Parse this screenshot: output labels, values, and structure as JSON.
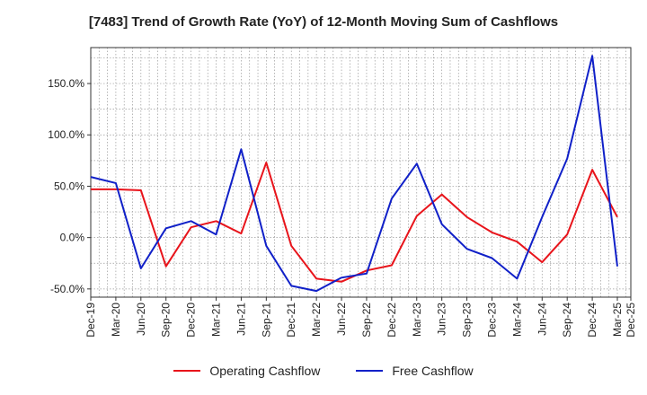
{
  "chart_data": {
    "type": "line",
    "title": "[7483]  Trend of Growth Rate (YoY) of 12-Month Moving Sum of Cashflows",
    "xlabel": "",
    "ylabel": "",
    "ylim": [
      -58,
      185
    ],
    "yticks": [
      -50,
      0,
      50,
      100,
      150
    ],
    "ytick_labels": [
      "-50.0%",
      "0.0%",
      "50.0%",
      "100.0%",
      "150.0%"
    ],
    "x_tick_labels": [
      "Dec-19",
      "Mar-20",
      "Jun-20",
      "Sep-20",
      "Dec-20",
      "Mar-21",
      "Jun-21",
      "Sep-21",
      "Dec-21",
      "Mar-22",
      "Jun-22",
      "Sep-22",
      "Dec-22",
      "Mar-23",
      "Jun-23",
      "Sep-23",
      "Dec-23",
      "Mar-24",
      "Jun-24",
      "Sep-24",
      "Dec-24",
      "Mar-25",
      "Dec-25"
    ],
    "grid": true,
    "legend_position": "bottom",
    "series": [
      {
        "name": "Operating Cashflow",
        "color": "#e8141b",
        "values": [
          47,
          47,
          46,
          -28,
          10,
          16,
          4,
          73,
          -8,
          -40,
          -43,
          -32,
          -27,
          21,
          42,
          20,
          5,
          -4,
          -24,
          3,
          66,
          20
        ]
      },
      {
        "name": "Free Cashflow",
        "color": "#1020c8",
        "values": [
          59,
          53,
          -30,
          9,
          16,
          3,
          86,
          -8,
          -47,
          -52,
          -39,
          -35,
          38,
          72,
          13,
          -11,
          -20,
          -40,
          20,
          77,
          177,
          -28
        ]
      }
    ]
  }
}
